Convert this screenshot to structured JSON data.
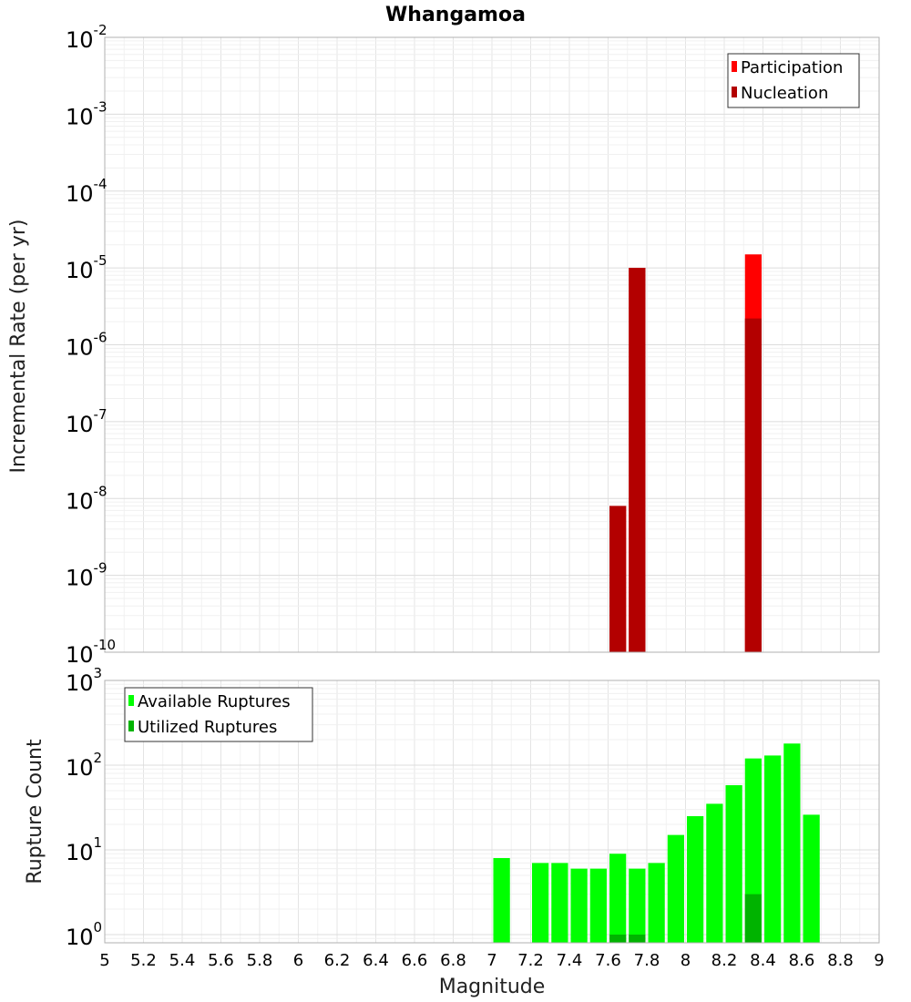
{
  "title": "Whangamoa",
  "xlabel": "Magnitude",
  "chart_data": [
    {
      "type": "bar",
      "ylabel": "Incremental Rate (per yr)",
      "yscale": "log",
      "ylim": [
        1e-10,
        0.01
      ],
      "xlim": [
        5,
        9
      ],
      "grid": true,
      "legend_position": "top-right",
      "bin_width": 0.1,
      "series": [
        {
          "name": "Participation",
          "color": "#ff0000",
          "x": [
            7.65,
            7.75,
            8.35
          ],
          "values": [
            8e-09,
            1e-05,
            1.5e-05
          ]
        },
        {
          "name": "Nucleation",
          "color": "#b30000",
          "x": [
            7.65,
            7.75,
            8.35
          ],
          "values": [
            8e-09,
            1e-05,
            2.2e-06
          ]
        }
      ]
    },
    {
      "type": "bar",
      "ylabel": "Rupture Count",
      "yscale": "log",
      "ylim": [
        0.8,
        1000
      ],
      "xlim": [
        5,
        9
      ],
      "grid": true,
      "legend_position": "top-left",
      "bin_width": 0.1,
      "series": [
        {
          "name": "Available Ruptures",
          "color": "#00ff00",
          "x": [
            7.05,
            7.25,
            7.35,
            7.45,
            7.55,
            7.65,
            7.75,
            7.85,
            7.95,
            8.05,
            8.15,
            8.25,
            8.35,
            8.45,
            8.55,
            8.65
          ],
          "values": [
            8,
            7,
            7,
            6,
            6,
            9,
            6,
            7,
            15,
            25,
            35,
            58,
            120,
            130,
            180,
            26
          ]
        },
        {
          "name": "Utilized Ruptures",
          "color": "#00b300",
          "x": [
            7.65,
            7.75,
            8.35
          ],
          "values": [
            1,
            1,
            3
          ]
        }
      ]
    }
  ],
  "x_ticks": [
    "5",
    "5.2",
    "5.4",
    "5.6",
    "5.8",
    "6",
    "6.2",
    "6.4",
    "6.6",
    "6.8",
    "7",
    "7.2",
    "7.4",
    "7.6",
    "7.8",
    "8",
    "8.2",
    "8.4",
    "8.6",
    "8.8",
    "9"
  ],
  "top_y_ticks": [
    {
      "base": "10",
      "exp": "-2"
    },
    {
      "base": "10",
      "exp": "-3"
    },
    {
      "base": "10",
      "exp": "-4"
    },
    {
      "base": "10",
      "exp": "-5"
    },
    {
      "base": "10",
      "exp": "-6"
    },
    {
      "base": "10",
      "exp": "-7"
    },
    {
      "base": "10",
      "exp": "-8"
    },
    {
      "base": "10",
      "exp": "-9"
    },
    {
      "base": "10",
      "exp": "-10"
    }
  ],
  "bottom_y_ticks": [
    {
      "base": "10",
      "exp": "3"
    },
    {
      "base": "10",
      "exp": "2"
    },
    {
      "base": "10",
      "exp": "1"
    },
    {
      "base": "10",
      "exp": "0"
    }
  ]
}
